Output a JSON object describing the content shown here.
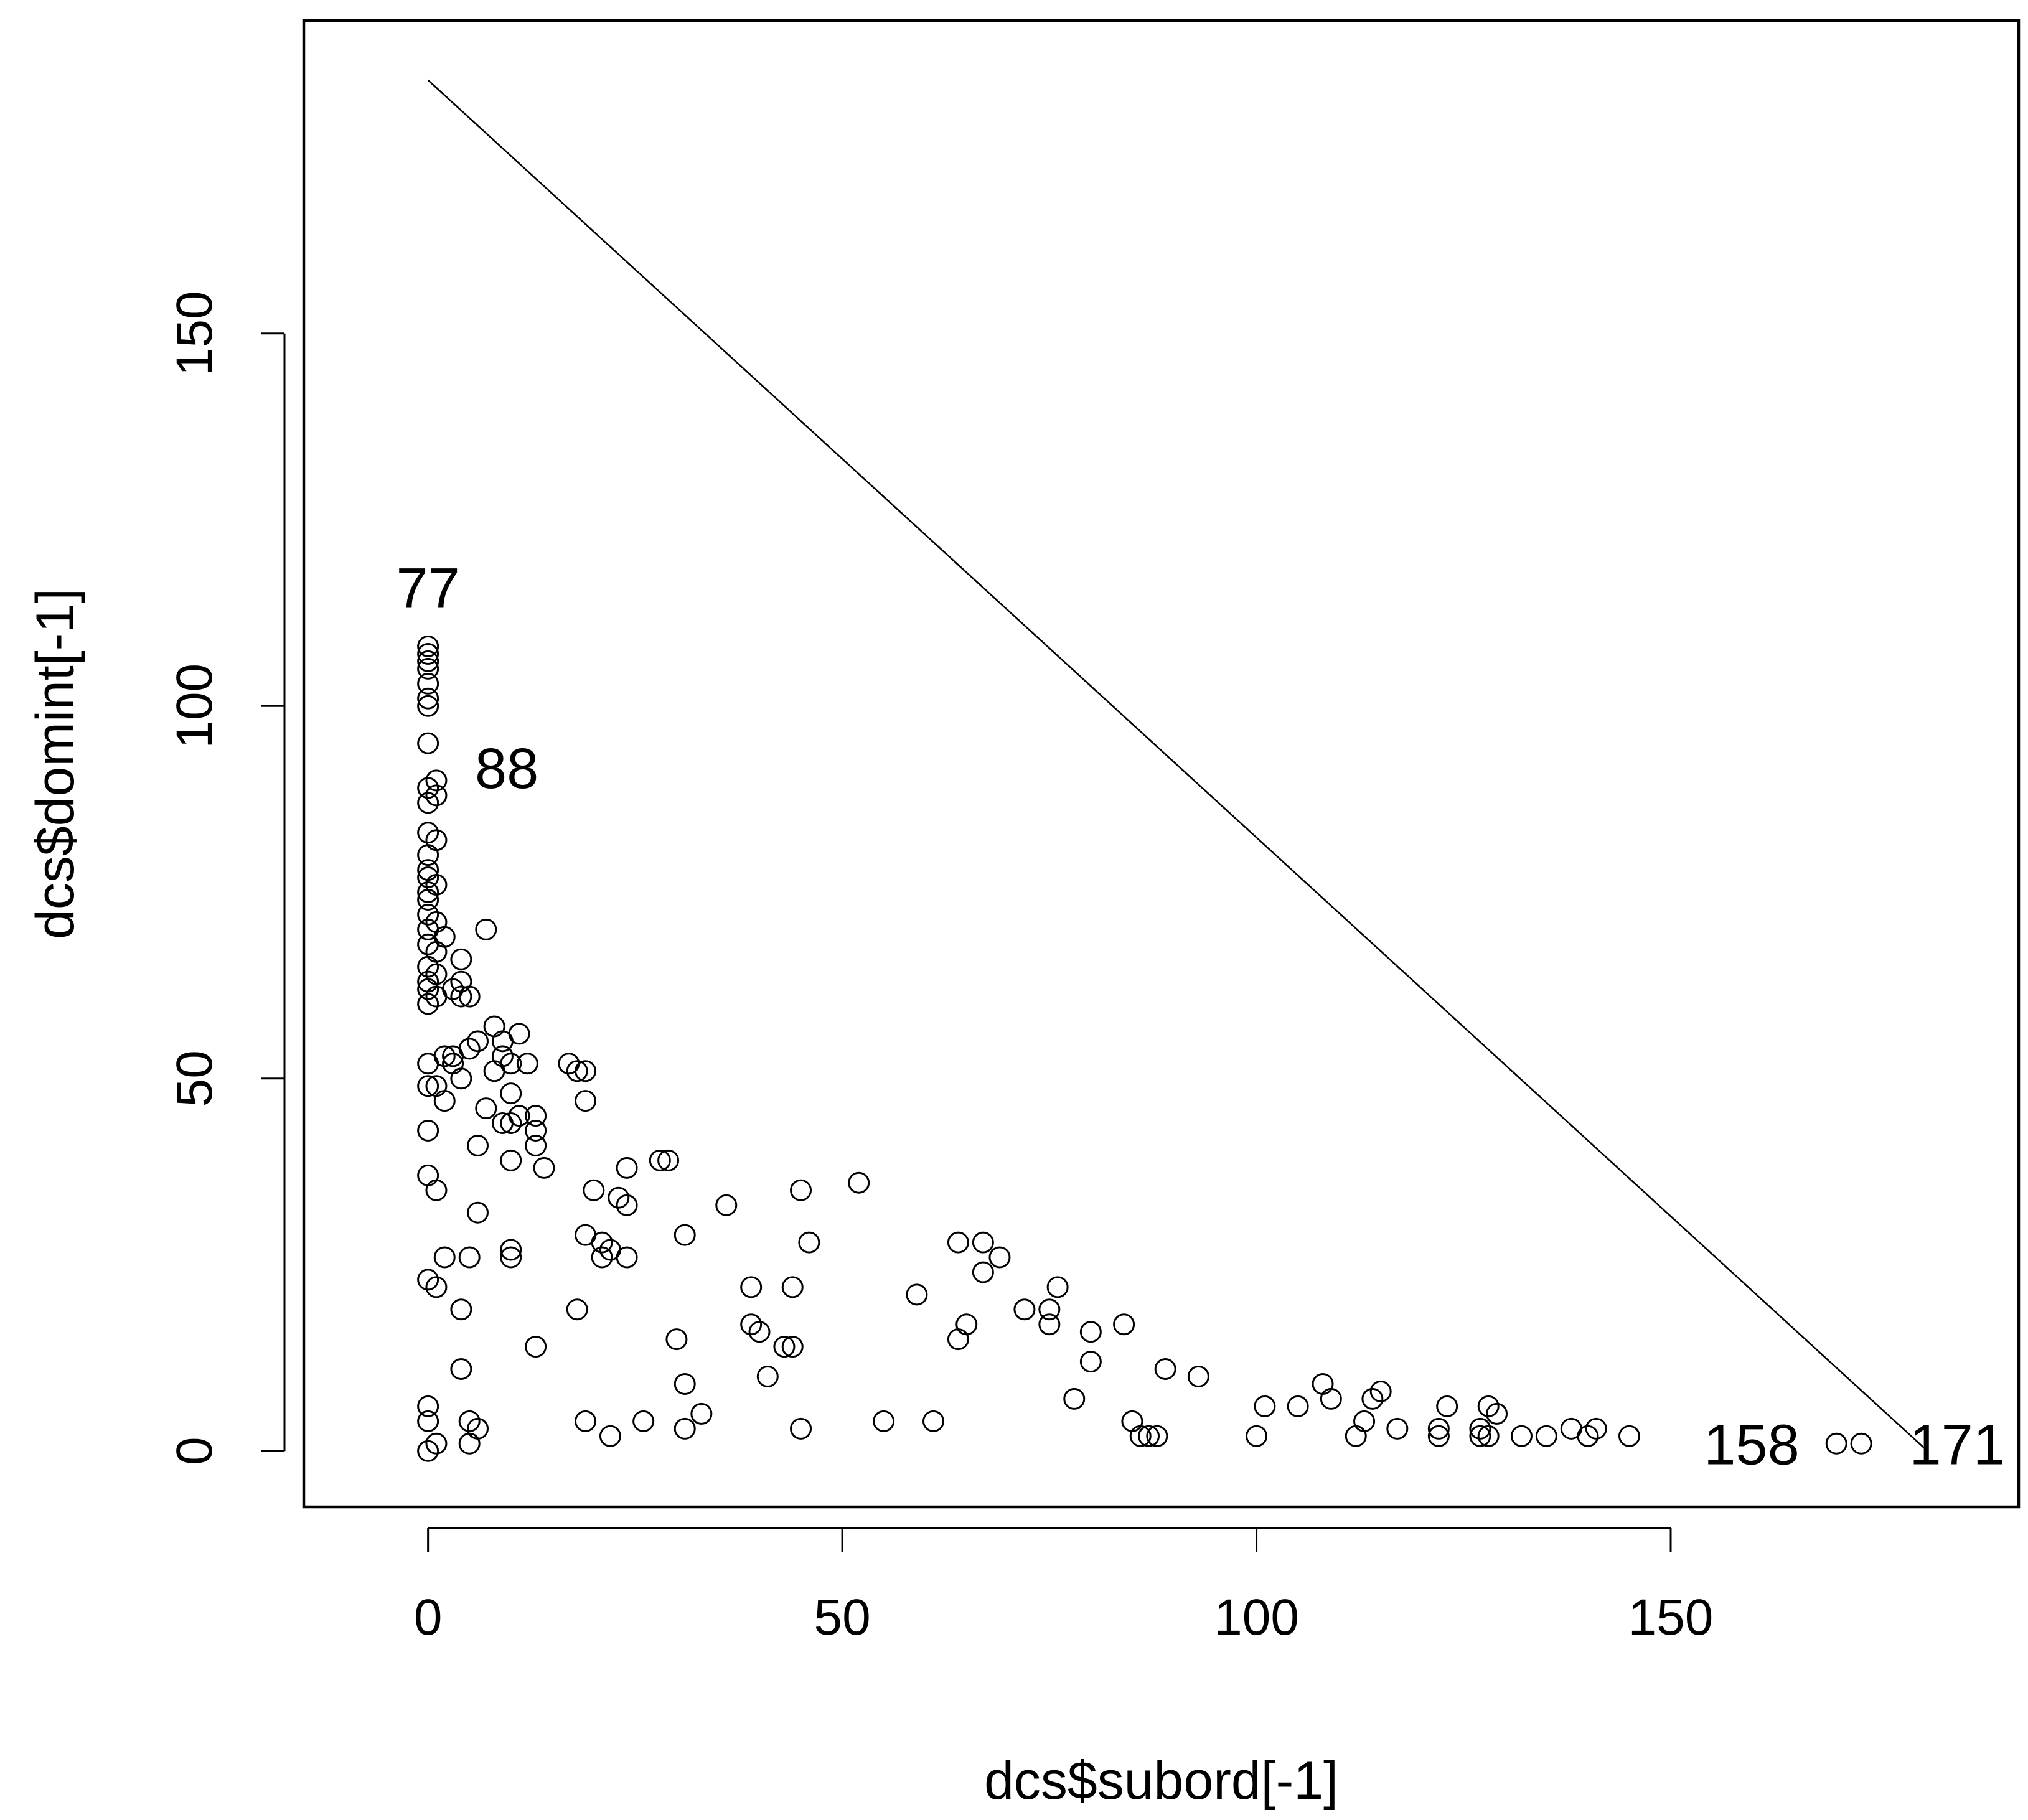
{
  "chart_data": {
    "type": "scatter",
    "title": "",
    "xlabel": "dcs$subord[-1]",
    "ylabel": "dcs$domint[-1]",
    "xlim": [
      -15,
      192
    ],
    "ylim": [
      -7.5,
      192
    ],
    "x_ticks": [
      0,
      50,
      100,
      150
    ],
    "y_ticks": [
      0,
      50,
      100,
      150
    ],
    "x_tick_labels": [
      "0",
      "50",
      "100",
      "150"
    ],
    "y_tick_labels": [
      "0",
      "50",
      "100",
      "150"
    ],
    "grid": false,
    "legend": "none",
    "colors": {
      "points": "#000000",
      "line": "#000000",
      "background": "#ffffff"
    },
    "reference_line": {
      "x": [
        0,
        181
      ],
      "y": [
        184,
        0
      ]
    },
    "annotations": [
      {
        "text": "77",
        "x": 0,
        "y": 108
      },
      {
        "text": "88",
        "x": 1,
        "y": 90
      },
      {
        "text": "158",
        "x": 158,
        "y": 1
      },
      {
        "text": "171",
        "x": 181,
        "y": 1
      }
    ],
    "points": [
      [
        0,
        108
      ],
      [
        0,
        107
      ],
      [
        0,
        106
      ],
      [
        0,
        105
      ],
      [
        0,
        103
      ],
      [
        0,
        101
      ],
      [
        0,
        100
      ],
      [
        0,
        95
      ],
      [
        1,
        90
      ],
      [
        0,
        89
      ],
      [
        1,
        88
      ],
      [
        0,
        87
      ],
      [
        0,
        83
      ],
      [
        1,
        82
      ],
      [
        0,
        80
      ],
      [
        0,
        78
      ],
      [
        0,
        77
      ],
      [
        1,
        76
      ],
      [
        0,
        75
      ],
      [
        0,
        74
      ],
      [
        0,
        72
      ],
      [
        1,
        71
      ],
      [
        0,
        70
      ],
      [
        2,
        69
      ],
      [
        0,
        68
      ],
      [
        1,
        67
      ],
      [
        0,
        65
      ],
      [
        1,
        64
      ],
      [
        0,
        63
      ],
      [
        0,
        62
      ],
      [
        1,
        61
      ],
      [
        0,
        60
      ],
      [
        3,
        62
      ],
      [
        4,
        66
      ],
      [
        4,
        63
      ],
      [
        4,
        61
      ],
      [
        5,
        61
      ],
      [
        7,
        70
      ],
      [
        8,
        57
      ],
      [
        11,
        56
      ],
      [
        9,
        55
      ],
      [
        6,
        55
      ],
      [
        5,
        54
      ],
      [
        9,
        53
      ],
      [
        3,
        53
      ],
      [
        2,
        53
      ],
      [
        0,
        52
      ],
      [
        3,
        52
      ],
      [
        10,
        52
      ],
      [
        12,
        52
      ],
      [
        17,
        52
      ],
      [
        18,
        51
      ],
      [
        19,
        51
      ],
      [
        8,
        51
      ],
      [
        4,
        50
      ],
      [
        1,
        49
      ],
      [
        0,
        49
      ],
      [
        10,
        48
      ],
      [
        2,
        47
      ],
      [
        7,
        46
      ],
      [
        19,
        47
      ],
      [
        13,
        45
      ],
      [
        11,
        45
      ],
      [
        9,
        44
      ],
      [
        10,
        44
      ],
      [
        13,
        43
      ],
      [
        0,
        43
      ],
      [
        13,
        41
      ],
      [
        6,
        41
      ],
      [
        10,
        39
      ],
      [
        14,
        38
      ],
      [
        0,
        37
      ],
      [
        1,
        35
      ],
      [
        24,
        38
      ],
      [
        28,
        39
      ],
      [
        29,
        39
      ],
      [
        20,
        35
      ],
      [
        23,
        34
      ],
      [
        24,
        33
      ],
      [
        36,
        33
      ],
      [
        45,
        35
      ],
      [
        52,
        36
      ],
      [
        6,
        32
      ],
      [
        31,
        29
      ],
      [
        19,
        29
      ],
      [
        21,
        28
      ],
      [
        22,
        27
      ],
      [
        10,
        27
      ],
      [
        10,
        26
      ],
      [
        21,
        26
      ],
      [
        24,
        26
      ],
      [
        46,
        28
      ],
      [
        64,
        28
      ],
      [
        67,
        28
      ],
      [
        69,
        26
      ],
      [
        67,
        24
      ],
      [
        5,
        26
      ],
      [
        2,
        26
      ],
      [
        0,
        23
      ],
      [
        1,
        22
      ],
      [
        39,
        22
      ],
      [
        44,
        22
      ],
      [
        59,
        21
      ],
      [
        76,
        22
      ],
      [
        72,
        19
      ],
      [
        75,
        19
      ],
      [
        18,
        19
      ],
      [
        4,
        19
      ],
      [
        39,
        17
      ],
      [
        40,
        16
      ],
      [
        30,
        15
      ],
      [
        43,
        14
      ],
      [
        44,
        14
      ],
      [
        13,
        14
      ],
      [
        64,
        15
      ],
      [
        65,
        17
      ],
      [
        75,
        17
      ],
      [
        80,
        16
      ],
      [
        84,
        17
      ],
      [
        80,
        12
      ],
      [
        89,
        11
      ],
      [
        93,
        10
      ],
      [
        41,
        10
      ],
      [
        4,
        11
      ],
      [
        31,
        9
      ],
      [
        78,
        7
      ],
      [
        108,
        9
      ],
      [
        109,
        7
      ],
      [
        114,
        7
      ],
      [
        115,
        8
      ],
      [
        101,
        6
      ],
      [
        105,
        6
      ],
      [
        123,
        6
      ],
      [
        128,
        6
      ],
      [
        129,
        5
      ],
      [
        113,
        4
      ],
      [
        0,
        6
      ],
      [
        0,
        4
      ],
      [
        5,
        4
      ],
      [
        6,
        3
      ],
      [
        19,
        4
      ],
      [
        26,
        4
      ],
      [
        33,
        5
      ],
      [
        31,
        3
      ],
      [
        45,
        3
      ],
      [
        55,
        4
      ],
      [
        61,
        4
      ],
      [
        85,
        4
      ],
      [
        86,
        2
      ],
      [
        87,
        2
      ],
      [
        88,
        2
      ],
      [
        100,
        2
      ],
      [
        112,
        2
      ],
      [
        117,
        3
      ],
      [
        122,
        3
      ],
      [
        122,
        2
      ],
      [
        127,
        3
      ],
      [
        127,
        2
      ],
      [
        128,
        2
      ],
      [
        132,
        2
      ],
      [
        135,
        2
      ],
      [
        138,
        3
      ],
      [
        140,
        2
      ],
      [
        141,
        3
      ],
      [
        145,
        2
      ],
      [
        170,
        1
      ],
      [
        173,
        1
      ],
      [
        5,
        1
      ],
      [
        1,
        1
      ],
      [
        0,
        0
      ],
      [
        22,
        2
      ]
    ]
  }
}
